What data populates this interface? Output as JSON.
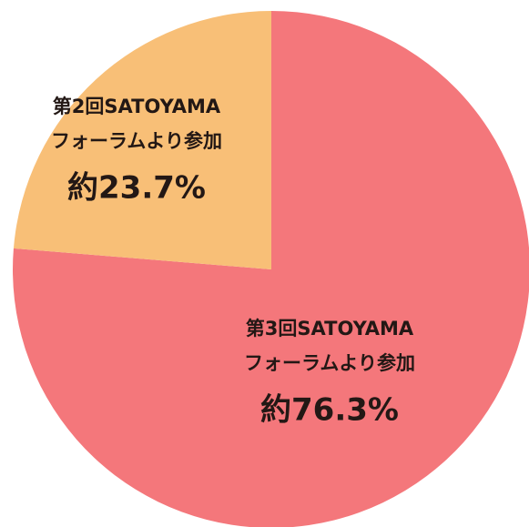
{
  "chart_data": {
    "type": "pie",
    "categories": [
      [
        "第3回SATOYAMA",
        "フォーラムより参加"
      ],
      [
        "第2回SATOYAMA",
        "フォーラムより参加"
      ]
    ],
    "values": [
      76.3,
      23.7
    ],
    "value_labels": [
      "約76.3%",
      "約23.7%"
    ],
    "colors": [
      "#f4777b",
      "#f8bf77"
    ]
  }
}
